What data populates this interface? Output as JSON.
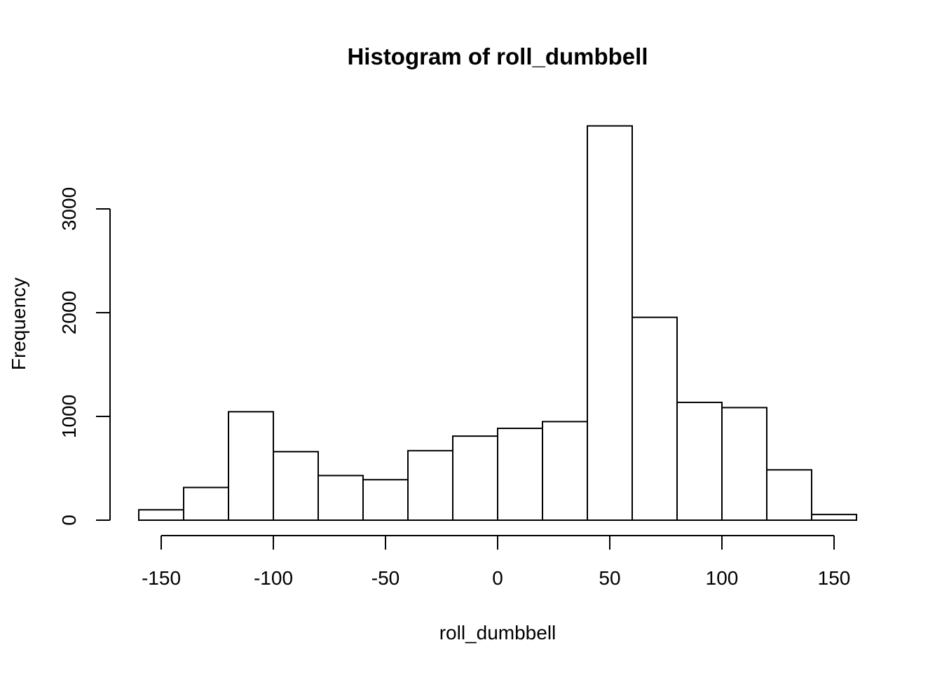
{
  "chart_data": {
    "type": "bar",
    "title": "Histogram of roll_dumbbell",
    "xlabel": "roll_dumbbell",
    "ylabel": "Frequency",
    "xlim": [
      -160,
      160
    ],
    "ylim": [
      0,
      3800
    ],
    "x_ticks": [
      -150,
      -100,
      -50,
      0,
      50,
      100,
      150
    ],
    "y_ticks": [
      0,
      1000,
      2000,
      3000
    ],
    "bins": [
      {
        "from": -160,
        "to": -140,
        "count": 100
      },
      {
        "from": -140,
        "to": -120,
        "count": 315
      },
      {
        "from": -120,
        "to": -100,
        "count": 1045
      },
      {
        "from": -100,
        "to": -80,
        "count": 660
      },
      {
        "from": -80,
        "to": -60,
        "count": 430
      },
      {
        "from": -60,
        "to": -40,
        "count": 390
      },
      {
        "from": -40,
        "to": -20,
        "count": 670
      },
      {
        "from": -20,
        "to": 0,
        "count": 810
      },
      {
        "from": 0,
        "to": 20,
        "count": 885
      },
      {
        "from": 20,
        "to": 40,
        "count": 950
      },
      {
        "from": 40,
        "to": 60,
        "count": 3800
      },
      {
        "from": 60,
        "to": 80,
        "count": 1955
      },
      {
        "from": 80,
        "to": 100,
        "count": 1135
      },
      {
        "from": 100,
        "to": 120,
        "count": 1085
      },
      {
        "from": 120,
        "to": 140,
        "count": 485
      },
      {
        "from": 140,
        "to": 160,
        "count": 55
      }
    ],
    "grid": false,
    "legend": "none",
    "colors": {
      "bar_fill": "#ffffff",
      "bar_stroke": "#000000"
    }
  }
}
